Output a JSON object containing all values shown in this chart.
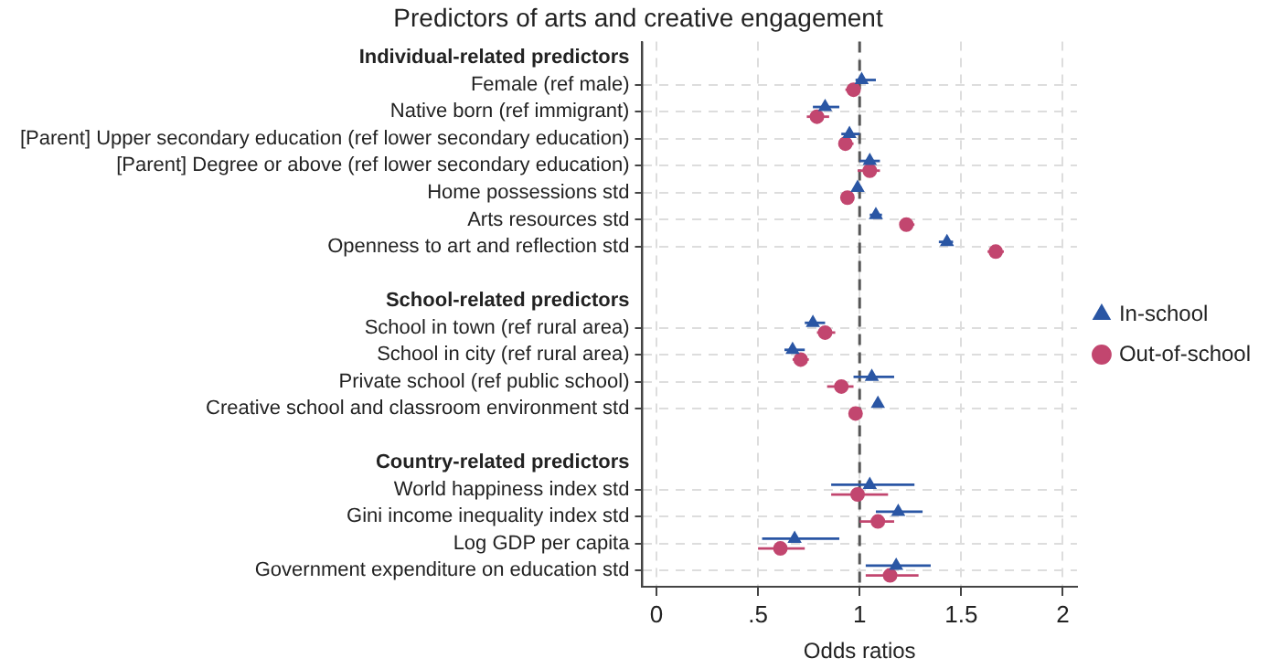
{
  "chart_data": {
    "type": "scatter",
    "orientation": "horizontal",
    "title": "Predictors of arts and creative engagement",
    "xlabel": "Odds ratios",
    "categories": [
      "Individual-related predictors",
      "Female (ref male)",
      "Native born (ref immigrant)",
      "[Parent] Upper secondary education (ref lower secondary education)",
      "[Parent] Degree or above (ref lower secondary education)",
      "Home possessions std",
      "Arts resources std",
      "Openness to art and reflection std",
      null,
      "School-related predictors",
      "School in town (ref rural area)",
      "School in city (ref rural area)",
      "Private school (ref public school)",
      "Creative school and classroom environment std",
      null,
      "Country-related predictors",
      "World happiness index std",
      "Gini income inequality index std",
      "Log GDP per capita",
      "Government expenditure on education std"
    ],
    "xlim": [
      -0.07,
      2.07
    ],
    "xticks": [
      0,
      {
        "value": 0.5,
        "label": ".5"
      },
      1,
      1.5,
      2
    ],
    "grid": true,
    "legend": "right",
    "ref_lines": [
      {
        "axis": "x",
        "value": 1,
        "color": "#555555",
        "line_style": "dashed"
      }
    ],
    "series": [
      {
        "name": "In-school",
        "color": "#2a56a4",
        "marker": "triangle",
        "values": [
          null,
          1.01,
          0.83,
          0.95,
          1.05,
          0.99,
          1.08,
          1.43,
          null,
          null,
          0.77,
          0.67,
          1.06,
          1.09,
          null,
          null,
          1.05,
          1.19,
          0.68,
          1.18
        ],
        "errors": [
          null,
          [
            0.98,
            1.08
          ],
          [
            0.77,
            0.9
          ],
          [
            0.91,
            1.0
          ],
          [
            1.0,
            1.1
          ],
          [
            0.98,
            1.01
          ],
          [
            1.05,
            1.11
          ],
          [
            1.39,
            1.46
          ],
          null,
          null,
          [
            0.73,
            0.83
          ],
          [
            0.63,
            0.73
          ],
          [
            0.97,
            1.17
          ],
          [
            1.07,
            1.1
          ],
          null,
          null,
          [
            0.86,
            1.27
          ],
          [
            1.08,
            1.31
          ],
          [
            0.52,
            0.9
          ],
          [
            1.03,
            1.35
          ]
        ]
      },
      {
        "name": "Out-of-school",
        "color": "#c2466f",
        "marker": "circle",
        "values": [
          null,
          0.97,
          0.79,
          0.93,
          1.05,
          0.94,
          1.23,
          1.67,
          null,
          null,
          0.83,
          0.71,
          0.91,
          0.98,
          null,
          null,
          0.99,
          1.09,
          0.61,
          1.15
        ],
        "errors": [
          null,
          [
            0.93,
            0.99
          ],
          [
            0.74,
            0.85
          ],
          [
            0.9,
            0.97
          ],
          [
            0.99,
            1.1
          ],
          [
            0.93,
            0.95
          ],
          [
            1.2,
            1.27
          ],
          [
            1.63,
            1.71
          ],
          null,
          null,
          [
            0.79,
            0.88
          ],
          [
            0.67,
            0.75
          ],
          [
            0.84,
            0.97
          ],
          [
            0.97,
            0.99
          ],
          null,
          null,
          [
            0.86,
            1.14
          ],
          [
            1.0,
            1.17
          ],
          [
            0.5,
            0.73
          ],
          [
            1.03,
            1.29
          ]
        ]
      }
    ]
  }
}
